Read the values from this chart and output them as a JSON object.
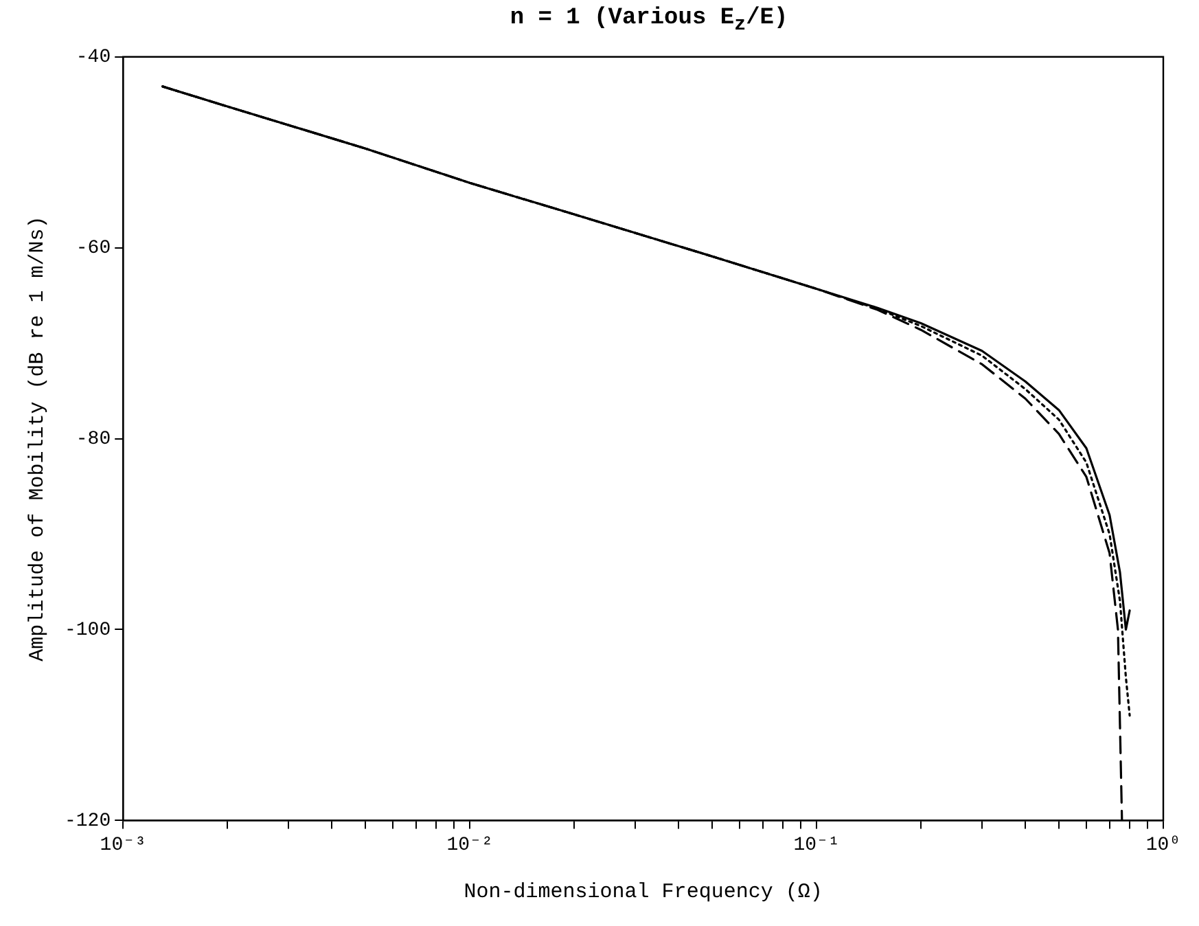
{
  "chart_data": {
    "type": "line",
    "title": "n = 1 (Various E$_{z}$/E)",
    "xlabel": "Non-dimensional Frequency (Ω)",
    "ylabel": "Amplitude of Mobility (dB re 1 m/Ns)",
    "log": "x",
    "grid": false,
    "legend": false,
    "marker": "none",
    "xlim": [
      0.001,
      1
    ],
    "ylim": [
      -120,
      -40
    ],
    "xticks": [
      {
        "value": 0.001,
        "label": "10⁻³"
      },
      {
        "value": 0.002,
        "label": null
      },
      {
        "value": 0.003,
        "label": null
      },
      {
        "value": 0.004,
        "label": null
      },
      {
        "value": 0.005,
        "label": null
      },
      {
        "value": 0.006,
        "label": null
      },
      {
        "value": 0.007,
        "label": null
      },
      {
        "value": 0.008,
        "label": null
      },
      {
        "value": 0.009,
        "label": null
      },
      {
        "value": 0.01,
        "label": "10⁻²"
      },
      {
        "value": 0.02,
        "label": null
      },
      {
        "value": 0.03,
        "label": null
      },
      {
        "value": 0.04,
        "label": null
      },
      {
        "value": 0.05,
        "label": null
      },
      {
        "value": 0.06,
        "label": null
      },
      {
        "value": 0.07,
        "label": null
      },
      {
        "value": 0.08,
        "label": null
      },
      {
        "value": 0.09,
        "label": null
      },
      {
        "value": 0.1,
        "label": "10⁻¹"
      },
      {
        "value": 0.2,
        "label": null
      },
      {
        "value": 0.3,
        "label": null
      },
      {
        "value": 0.4,
        "label": null
      },
      {
        "value": 0.5,
        "label": null
      },
      {
        "value": 0.6,
        "label": null
      },
      {
        "value": 0.7,
        "label": null
      },
      {
        "value": 0.8,
        "label": null
      },
      {
        "value": 0.9,
        "label": null
      },
      {
        "value": 1,
        "label": "10⁰"
      }
    ],
    "yticks": [
      -120,
      -100,
      -80,
      -60,
      -40
    ],
    "series": [
      {
        "color": "#000000",
        "line_style": "solid",
        "x": [
          0.0013,
          0.002,
          0.005,
          0.01,
          0.02,
          0.05,
          0.1,
          0.15,
          0.2,
          0.3,
          0.4,
          0.5,
          0.6,
          0.7,
          0.75,
          0.78,
          0.8
        ],
        "values": [
          -43.1,
          -45.2,
          -49.6,
          -53.2,
          -56.5,
          -60.9,
          -64.3,
          -66.3,
          -67.9,
          -70.8,
          -74.0,
          -77.0,
          -81.0,
          -88.0,
          -94.0,
          -100.0,
          -98.0
        ]
      },
      {
        "color": "#000000",
        "line_style": "dashed",
        "x": [
          0.0013,
          0.002,
          0.005,
          0.01,
          0.02,
          0.05,
          0.1,
          0.15,
          0.2,
          0.3,
          0.4,
          0.5,
          0.6,
          0.7,
          0.74,
          0.75,
          0.76
        ],
        "values": [
          -43.1,
          -45.2,
          -49.6,
          -53.2,
          -56.5,
          -60.9,
          -64.3,
          -66.5,
          -68.6,
          -72.2,
          -75.8,
          -79.5,
          -84.0,
          -92.0,
          -100.0,
          -110.0,
          -120.0
        ]
      },
      {
        "color": "#000000",
        "line_style": "dotted",
        "x": [
          0.0013,
          0.002,
          0.005,
          0.01,
          0.02,
          0.05,
          0.1,
          0.15,
          0.2,
          0.3,
          0.4,
          0.5,
          0.6,
          0.7,
          0.75,
          0.78,
          0.8
        ],
        "values": [
          -43.1,
          -45.2,
          -49.6,
          -53.2,
          -56.5,
          -60.9,
          -64.3,
          -66.4,
          -68.2,
          -71.3,
          -74.8,
          -78.0,
          -82.5,
          -90.0,
          -97.0,
          -105.0,
          -109.0
        ]
      }
    ]
  }
}
